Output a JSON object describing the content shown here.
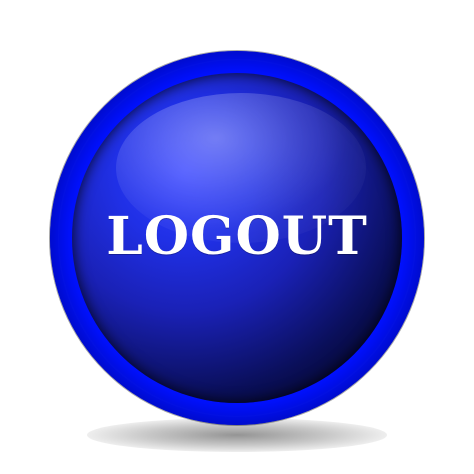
{
  "button": {
    "label": "LOGOUT"
  },
  "colors": {
    "background": "#ffffff",
    "button_primary": "#2030e6",
    "button_dark": "#05084a",
    "text": "#ffffff"
  }
}
